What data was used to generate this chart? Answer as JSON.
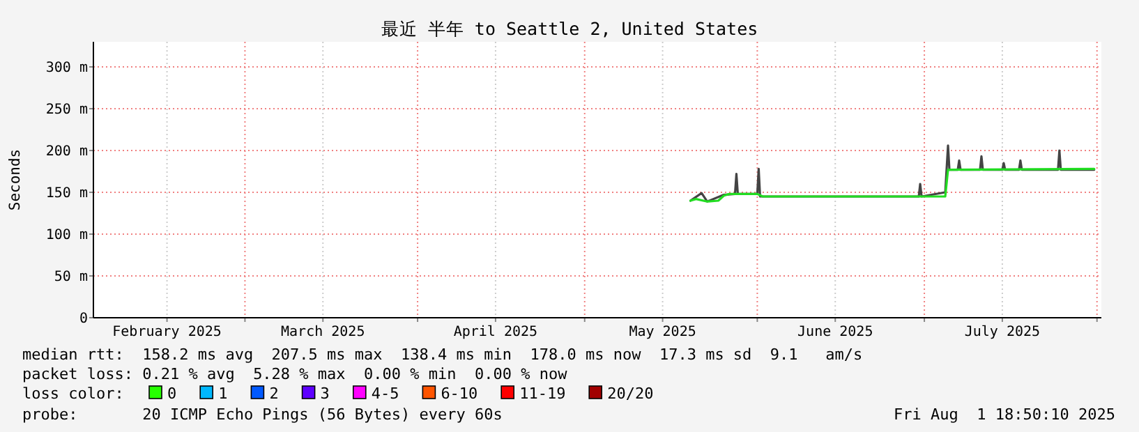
{
  "chart_data": {
    "type": "line",
    "title": "最近 半年 to Seattle 2, United States",
    "ylabel": "Seconds",
    "xlim": [
      "2025-02-01T18:50",
      "2025-08-01T18:50"
    ],
    "xticks": [
      {
        "value": "2025-02-15",
        "label": "February 2025"
      },
      {
        "value": "2025-03-01",
        "label": null
      },
      {
        "value": "2025-03-15",
        "label": "March 2025"
      },
      {
        "value": "2025-04-01",
        "label": null
      },
      {
        "value": "2025-04-15",
        "label": "April 2025"
      },
      {
        "value": "2025-05-01",
        "label": null
      },
      {
        "value": "2025-05-15",
        "label": "May 2025"
      },
      {
        "value": "2025-06-01",
        "label": null
      },
      {
        "value": "2025-06-15",
        "label": "June 2025"
      },
      {
        "value": "2025-07-01",
        "label": null
      },
      {
        "value": "2025-07-15",
        "label": "July 2025"
      },
      {
        "value": "2025-08-01",
        "label": null
      }
    ],
    "ylim": [
      0,
      330
    ],
    "yticks": [
      0,
      {
        "value": 50,
        "label": "50 m"
      },
      {
        "value": 100,
        "label": "100 m"
      },
      {
        "value": 150,
        "label": "150 m"
      },
      {
        "value": 200,
        "label": "200 m"
      },
      {
        "value": 250,
        "label": "250 m"
      },
      {
        "value": 300,
        "label": "300 m"
      }
    ],
    "grid": true,
    "series": [
      {
        "color": "#444444",
        "x": [
          "2025-05-20",
          "2025-05-22",
          "2025-05-23",
          "2025-05-26",
          "2025-05-28T00:00",
          "2025-05-28T06:00",
          "2025-05-28T12:00",
          "2025-06-01T00:00",
          "2025-06-01T06:00",
          "2025-06-01T12:00",
          "2025-06-30T00:00",
          "2025-06-30T06:00",
          "2025-06-30T12:00",
          "2025-07-04T18:00",
          "2025-07-05T06:00",
          "2025-07-05T12:00",
          "2025-07-07T00:00",
          "2025-07-07T06:00",
          "2025-07-07T12:00",
          "2025-07-11T00:00",
          "2025-07-11T06:00",
          "2025-07-11T12:00",
          "2025-07-15T00:00",
          "2025-07-15T06:00",
          "2025-07-15T12:00",
          "2025-07-18T00:00",
          "2025-07-18T06:00",
          "2025-07-18T12:00",
          "2025-07-25T00:00",
          "2025-07-25T06:00",
          "2025-07-25T12:00",
          "2025-07-31T12:00"
        ],
        "values": [
          140,
          149,
          139,
          147,
          148,
          172,
          148,
          148,
          178,
          145,
          145,
          160,
          145,
          150,
          206,
          177,
          177,
          188,
          177,
          177,
          193,
          177,
          177,
          185,
          177,
          177,
          188,
          177,
          177,
          200,
          177,
          177
        ]
      },
      {
        "color": "#22dd22",
        "x": [
          "2025-05-20",
          "2025-05-21",
          "2025-05-23",
          "2025-05-25",
          "2025-05-26",
          "2025-05-27",
          "2025-06-01",
          "2025-06-02",
          "2025-07-04T18:00",
          "2025-07-05T06:00",
          "2025-07-31T12:00"
        ],
        "values": [
          140,
          142,
          139,
          140,
          146,
          148,
          148,
          145,
          145,
          177,
          178
        ]
      }
    ],
    "annotations": [
      "median rtt:  158.2 ms avg  207.5 ms max  138.4 ms min  178.0 ms now  17.3 ms sd  9.1   am/s",
      "packet loss: 0.21 % avg  5.28 % max  0.00 % min  0.00 % now",
      "loss color:",
      "0",
      "1",
      "2",
      "3",
      "4-5",
      "6-10",
      "11-19",
      "20/20",
      "probe:       20 ICMP Echo Pings (56 Bytes) every 60s",
      "Fri Aug  1 18:50:10 2025"
    ]
  }
}
